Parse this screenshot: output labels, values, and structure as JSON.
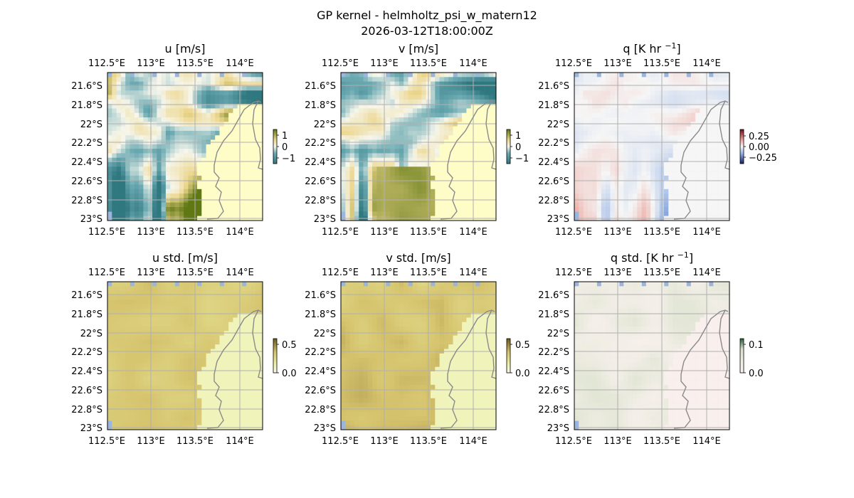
{
  "title": "GP kernel - helmholtz_psi_w_matern12",
  "subtitle": "2026-03-12T18:00:00Z",
  "colors": {
    "ocean": "#9bb5dc",
    "land_low": "#fefdc8",
    "grid": "#b0b0b0",
    "coast": "#8a8a8a"
  },
  "chart_data": [
    {
      "type": "heatmap",
      "name": "u",
      "title": "u [m/s]",
      "x_ticks": [
        "112.5°E",
        "113°E",
        "113.5°E",
        "114°E"
      ],
      "y_ticks": [
        "21.6°S",
        "21.8°S",
        "22°S",
        "22.2°S",
        "22.4°S",
        "22.6°S",
        "22.8°S",
        "23°S"
      ],
      "colorbar": {
        "ticks": [
          "1",
          "0",
          "−1"
        ],
        "range": [
          -1.5,
          1.5
        ],
        "colormap": "diverging-teal-yellow-olive"
      },
      "grid": true
    },
    {
      "type": "heatmap",
      "name": "v",
      "title": "v [m/s]",
      "x_ticks": [
        "112.5°E",
        "113°E",
        "113.5°E",
        "114°E"
      ],
      "y_ticks": [
        "21.6°S",
        "21.8°S",
        "22°S",
        "22.2°S",
        "22.4°S",
        "22.6°S",
        "22.8°S",
        "23°S"
      ],
      "colorbar": {
        "ticks": [
          "1",
          "0",
          "−1"
        ],
        "range": [
          -1.5,
          1.5
        ],
        "colormap": "diverging-teal-yellow-olive"
      },
      "grid": true
    },
    {
      "type": "heatmap",
      "name": "q",
      "title": "q [K hr ",
      "title_sup": "−1",
      "title_end": "]",
      "x_ticks": [
        "112.5°E",
        "113°E",
        "113.5°E",
        "114°E"
      ],
      "y_ticks": [
        "21.6°S",
        "21.8°S",
        "22°S",
        "22.2°S",
        "22.4°S",
        "22.6°S",
        "22.8°S",
        "23°S"
      ],
      "colorbar": {
        "ticks": [
          "0.25",
          "0.00",
          "−0.25"
        ],
        "range": [
          -0.4,
          0.4
        ],
        "colormap": "diverging-blue-white-red"
      },
      "grid": true
    },
    {
      "type": "heatmap",
      "name": "u-std",
      "title": "u std. [m/s]",
      "x_ticks": [
        "112.5°E",
        "113°E",
        "113.5°E",
        "114°E"
      ],
      "y_ticks": [
        "21.6°S",
        "21.8°S",
        "22°S",
        "22.2°S",
        "22.4°S",
        "22.6°S",
        "22.8°S",
        "23°S"
      ],
      "colorbar": {
        "ticks": [
          "0.5",
          "0.0"
        ],
        "range": [
          0,
          0.6
        ],
        "colormap": "sequential-yellow-olive"
      },
      "grid": true
    },
    {
      "type": "heatmap",
      "name": "v-std",
      "title": "v std. [m/s]",
      "x_ticks": [
        "112.5°E",
        "113°E",
        "113.5°E",
        "114°E"
      ],
      "y_ticks": [
        "21.6°S",
        "21.8°S",
        "22°S",
        "22.2°S",
        "22.4°S",
        "22.6°S",
        "22.8°S",
        "23°S"
      ],
      "colorbar": {
        "ticks": [
          "0.5",
          "0.0"
        ],
        "range": [
          0,
          0.6
        ],
        "colormap": "sequential-yellow-olive"
      },
      "grid": true
    },
    {
      "type": "heatmap",
      "name": "q-std",
      "title": "q std. [K hr ",
      "title_sup": "−1",
      "title_end": "]",
      "x_ticks": [
        "112.5°E",
        "113°E",
        "113.5°E",
        "114°E"
      ],
      "y_ticks": [
        "21.6°S",
        "21.8°S",
        "22°S",
        "22.2°S",
        "22.4°S",
        "22.6°S",
        "22.8°S",
        "23°S"
      ],
      "colorbar": {
        "ticks": [
          "0.1",
          "0.0"
        ],
        "range": [
          0,
          0.12
        ],
        "colormap": "sequential-pink-green"
      },
      "grid": true
    }
  ]
}
